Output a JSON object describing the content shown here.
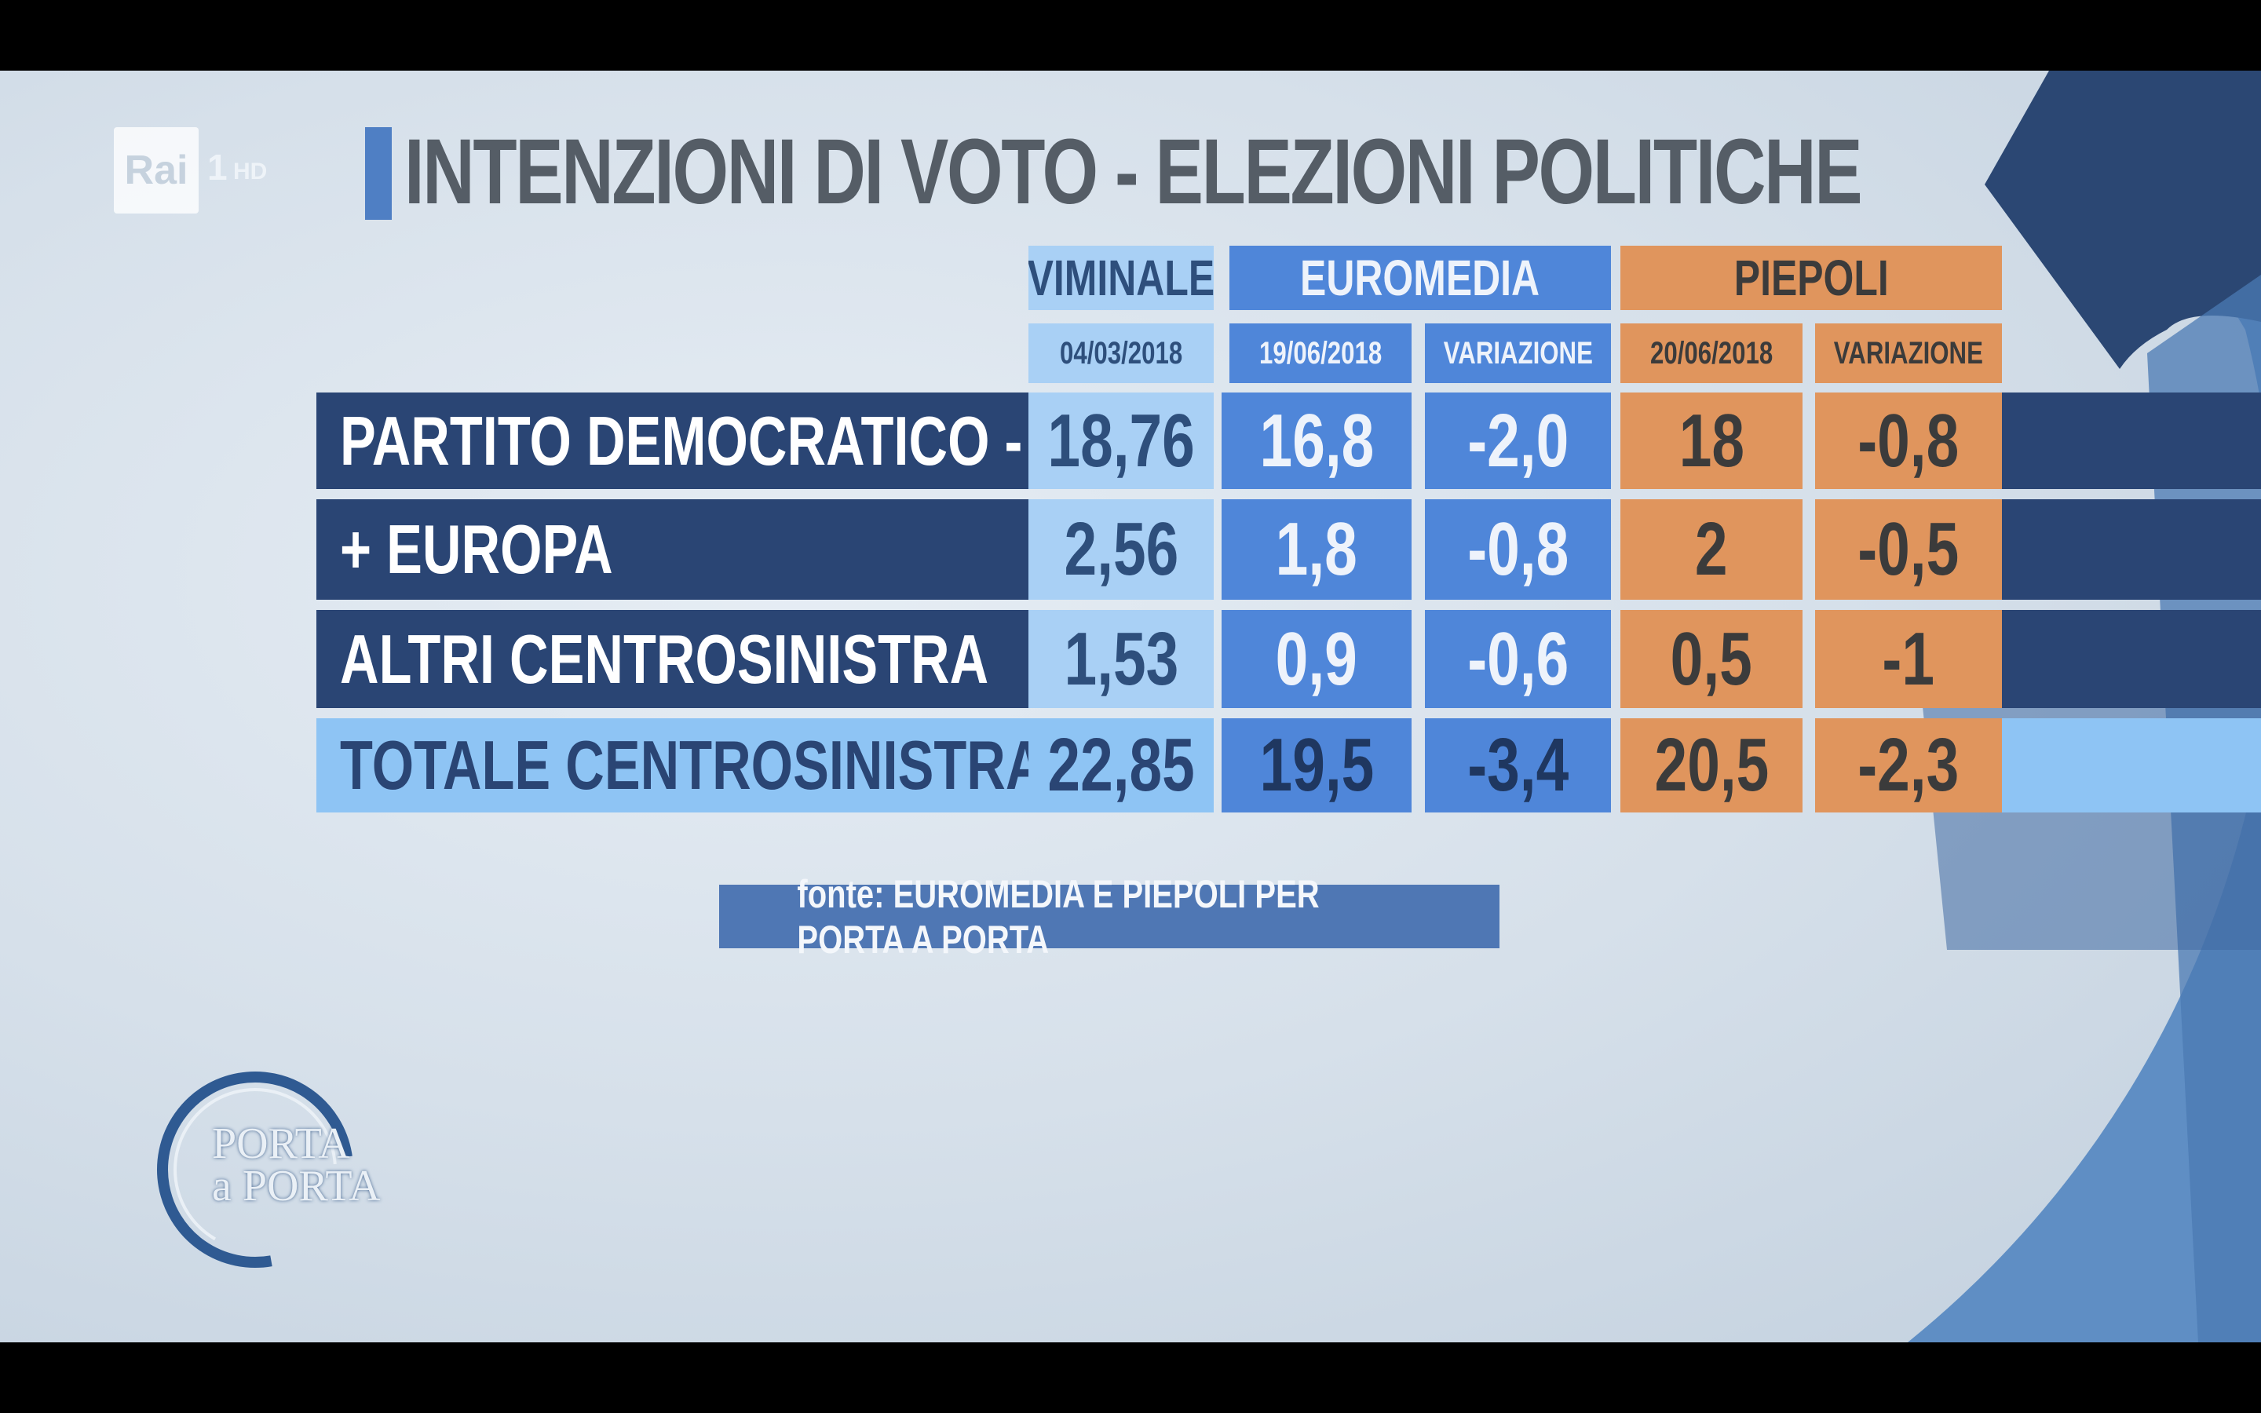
{
  "logo": {
    "broadcaster": "Rai",
    "channel": "1",
    "quality": "HD"
  },
  "title": "INTENZIONI DI VOTO - ELEZIONI POLITICHE",
  "columns": {
    "viminale": {
      "label": "VIMINALE",
      "date": "04/03/2018"
    },
    "euromedia": {
      "label": "EUROMEDIA",
      "date": "19/06/2018",
      "change": "VARIAZIONE"
    },
    "piepoli": {
      "label": "PIEPOLI",
      "date": "20/06/2018",
      "change": "VARIAZIONE"
    }
  },
  "rows": [
    {
      "party": "PARTITO DEMOCRATICO - PSE",
      "viminale": "18,76",
      "euromedia": "16,8",
      "euromedia_change": "-2,0",
      "piepoli": "18",
      "piepoli_change": "-0,8"
    },
    {
      "party": "+ EUROPA",
      "viminale": "2,56",
      "euromedia": "1,8",
      "euromedia_change": "-0,8",
      "piepoli": "2",
      "piepoli_change": "-0,5"
    },
    {
      "party": "ALTRI CENTROSINISTRA",
      "viminale": "1,53",
      "euromedia": "0,9",
      "euromedia_change": "-0,6",
      "piepoli": "0,5",
      "piepoli_change": "-1"
    },
    {
      "party": "TOTALE CENTROSINISTRA",
      "viminale": "22,85",
      "euromedia": "19,5",
      "euromedia_change": "-3,4",
      "piepoli": "20,5",
      "piepoli_change": "-2,3"
    }
  ],
  "source": "fonte: EUROMEDIA E PIEPOLI PER PORTA A PORTA",
  "program_logo": {
    "line1": "PORTA",
    "line2": "a PORTA"
  },
  "colors": {
    "viminale": "#a9d0f5",
    "euromedia": "#4f86d9",
    "piepoli": "#e0955d",
    "row": "#2a4574",
    "total": "#8ec4f4"
  },
  "chart_data": {
    "type": "table",
    "title": "INTENZIONI DI VOTO - ELEZIONI POLITICHE",
    "columns": [
      "VIMINALE 04/03/2018",
      "EUROMEDIA 19/06/2018",
      "EUROMEDIA VARIAZIONE",
      "PIEPOLI 20/06/2018",
      "PIEPOLI VARIAZIONE"
    ],
    "rows": [
      {
        "label": "PARTITO DEMOCRATICO - PSE",
        "values": [
          18.76,
          16.8,
          -2.0,
          18,
          -0.8
        ]
      },
      {
        "label": "+ EUROPA",
        "values": [
          2.56,
          1.8,
          -0.8,
          2,
          -0.5
        ]
      },
      {
        "label": "ALTRI CENTROSINISTRA",
        "values": [
          1.53,
          0.9,
          -0.6,
          0.5,
          -1
        ]
      },
      {
        "label": "TOTALE CENTROSINISTRA",
        "values": [
          22.85,
          19.5,
          -3.4,
          20.5,
          -2.3
        ]
      }
    ]
  }
}
